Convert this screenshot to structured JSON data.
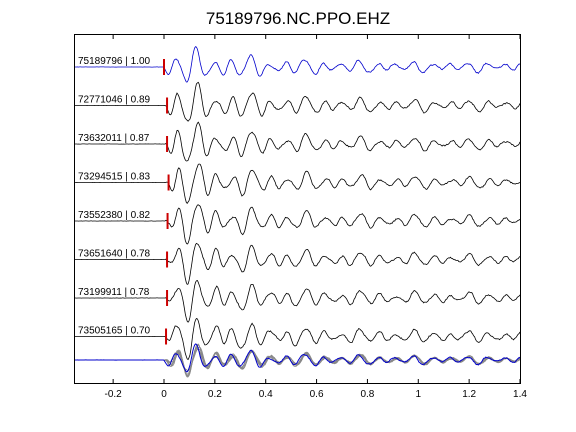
{
  "chart_data": {
    "type": "line",
    "title": "75189796.NC.PPO.EHZ",
    "xlabel": "",
    "ylabel": "",
    "xlim": [
      -0.35,
      1.4
    ],
    "x_ticks": [
      -0.2,
      0,
      0.2,
      0.4,
      0.6,
      0.8,
      1,
      1.2,
      1.4
    ],
    "x_tick_labels": [
      "-0.2",
      "0",
      "0.2",
      "0.4",
      "0.6",
      "0.8",
      "1",
      "1.2",
      "1.4"
    ],
    "grid": false,
    "pick_time": 0.0,
    "traces": [
      {
        "label": "75189796 | 1.00",
        "event_id": "75189796",
        "correlation": 1.0,
        "color": "#0000cc",
        "pick_offset": 0.0
      },
      {
        "label": "72771046 | 0.89",
        "event_id": "72771046",
        "correlation": 0.89,
        "color": "#000000",
        "pick_offset": 0.012
      },
      {
        "label": "73632011 | 0.87",
        "event_id": "73632011",
        "correlation": 0.87,
        "color": "#000000",
        "pick_offset": 0.012
      },
      {
        "label": "73294515 | 0.83",
        "event_id": "73294515",
        "correlation": 0.83,
        "color": "#000000",
        "pick_offset": 0.018
      },
      {
        "label": "73552380 | 0.82",
        "event_id": "73552380",
        "correlation": 0.82,
        "color": "#000000",
        "pick_offset": 0.014
      },
      {
        "label": "73651640 | 0.78",
        "event_id": "73651640",
        "correlation": 0.78,
        "color": "#000000",
        "pick_offset": 0.012
      },
      {
        "label": "73199911 | 0.78",
        "event_id": "73199911",
        "correlation": 0.78,
        "color": "#000000",
        "pick_offset": 0.012
      },
      {
        "label": "73505165 | 0.70",
        "event_id": "73505165",
        "correlation": 0.7,
        "color": "#000000",
        "pick_offset": 0.008
      }
    ],
    "stack": {
      "overlay_color": "#888888",
      "master_color": "#0000cc"
    },
    "pick_marker_color": "#cc0000"
  }
}
